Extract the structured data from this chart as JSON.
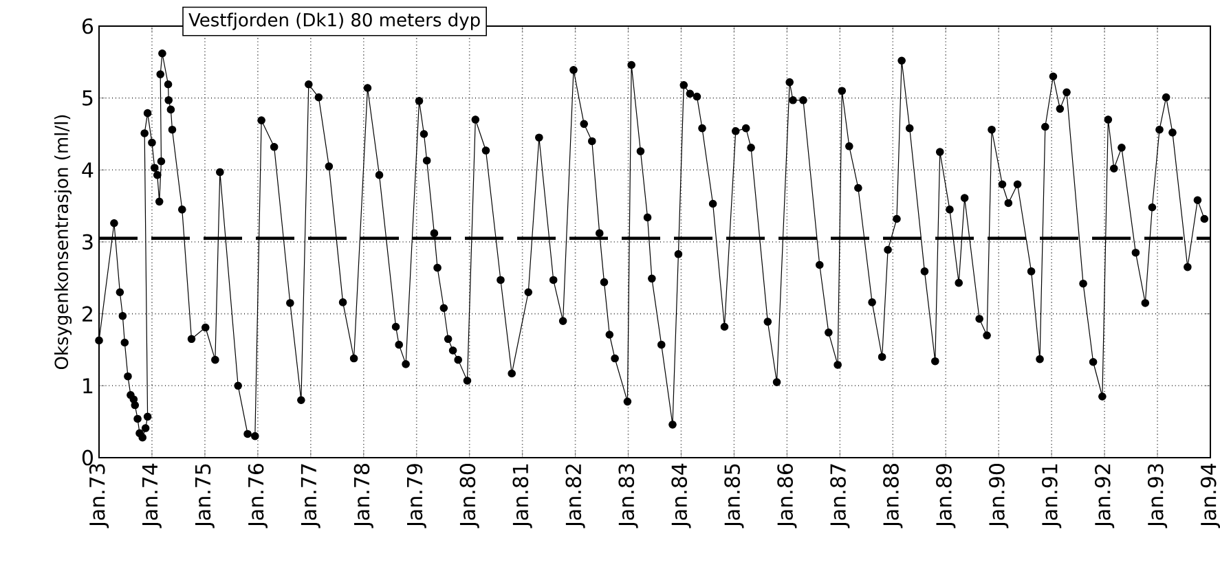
{
  "chart_data": {
    "type": "line",
    "title": "Vestfjorden (Dk1) 80 meters dyp",
    "ylabel": "Oksygenkonsentrasjon (ml/l)",
    "x": [
      "1973-01-01",
      "1973-04-15",
      "1973-05-25",
      "1973-06-13",
      "1973-06-27",
      "1973-07-19",
      "1973-08-07",
      "1973-08-28",
      "1973-09-06",
      "1973-09-24",
      "1973-10-08",
      "1973-10-28",
      "1973-11-18",
      "1973-12-02",
      "1973-11-11",
      "1973-12-02",
      "1974-01-01",
      "1974-01-19",
      "1974-02-07",
      "1974-02-21",
      "1974-03-06",
      "1974-02-28",
      "1974-03-13",
      "1974-04-23",
      "1974-04-26",
      "1974-05-11",
      "1974-05-21",
      "1974-07-28",
      "1974-10-01",
      "1975-01-05",
      "1975-03-13",
      "1975-04-15",
      "1975-08-18",
      "1975-10-23",
      "1975-12-13",
      "1976-01-26",
      "1976-04-23",
      "1976-08-11",
      "1976-10-26",
      "1976-12-17",
      "1977-02-25",
      "1977-05-07",
      "1977-08-11",
      "1977-10-26",
      "1978-01-28",
      "1978-04-19",
      "1978-08-11",
      "1978-09-02",
      "1978-10-19",
      "1979-01-19",
      "1979-02-21",
      "1979-03-13",
      "1979-05-03",
      "1979-05-25",
      "1979-07-08",
      "1979-08-07",
      "1979-09-09",
      "1979-10-15",
      "1979-12-17",
      "1980-02-11",
      "1980-04-23",
      "1980-08-03",
      "1980-10-19",
      "1981-02-11",
      "1981-04-26",
      "1981-08-03",
      "1981-10-08",
      "1981-12-20",
      "1982-03-02",
      "1982-04-26",
      "1982-06-17",
      "1982-07-19",
      "1982-08-25",
      "1982-10-01",
      "1982-12-27",
      "1983-01-23",
      "1983-03-27",
      "1983-05-14",
      "1983-06-13",
      "1983-08-18",
      "1983-11-03",
      "1983-12-13",
      "1984-01-19",
      "1984-03-02",
      "1984-04-19",
      "1984-05-25",
      "1984-08-07",
      "1984-10-26",
      "1985-01-12",
      "1985-03-24",
      "1985-04-28",
      "1985-08-21",
      "1985-10-23",
      "1986-01-19",
      "1986-02-11",
      "1986-04-23",
      "1986-08-14",
      "1986-10-15",
      "1986-12-17",
      "1987-01-15",
      "1987-03-06",
      "1987-05-07",
      "1987-08-11",
      "1987-10-19",
      "1987-11-28",
      "1988-01-28",
      "1988-03-02",
      "1988-04-26",
      "1988-08-07",
      "1988-10-19",
      "1988-11-21",
      "1989-01-28",
      "1989-04-01",
      "1989-05-11",
      "1989-08-21",
      "1989-10-12",
      "1989-11-14",
      "1990-01-26",
      "1990-03-09",
      "1990-05-11",
      "1990-08-14",
      "1990-10-12",
      "1990-11-18",
      "1991-01-12",
      "1991-02-28",
      "1991-04-15",
      "1991-08-07",
      "1991-10-15",
      "1991-12-17",
      "1992-01-26",
      "1992-03-06",
      "1992-04-28",
      "1992-08-03",
      "1992-10-08",
      "1992-11-25",
      "1993-01-15",
      "1993-03-02",
      "1993-04-15",
      "1993-07-28",
      "1993-10-05",
      "1993-11-21"
    ],
    "series": [
      {
        "color": "#000000",
        "values": [
          1.63,
          3.26,
          2.3,
          1.97,
          1.6,
          1.13,
          0.87,
          0.81,
          0.73,
          0.54,
          0.34,
          0.28,
          0.41,
          0.57,
          4.51,
          4.79,
          4.38,
          4.03,
          3.93,
          3.56,
          4.12,
          5.33,
          5.62,
          5.19,
          4.97,
          4.84,
          4.56,
          3.45,
          1.65,
          1.81,
          1.36,
          3.97,
          1.0,
          0.33,
          0.3,
          4.69,
          4.32,
          2.15,
          0.8,
          5.19,
          5.01,
          4.05,
          2.16,
          1.38,
          5.14,
          3.93,
          1.82,
          1.57,
          1.3,
          4.96,
          4.5,
          4.13,
          3.12,
          2.64,
          2.08,
          1.65,
          1.49,
          1.36,
          1.07,
          4.7,
          4.27,
          2.47,
          1.17,
          2.3,
          4.45,
          2.47,
          1.9,
          5.39,
          4.64,
          4.4,
          3.12,
          2.44,
          1.71,
          1.38,
          0.78,
          5.46,
          4.26,
          3.34,
          2.49,
          1.57,
          0.46,
          2.83,
          5.18,
          5.06,
          5.02,
          4.58,
          3.53,
          1.82,
          4.54,
          4.58,
          4.31,
          1.89,
          1.05,
          5.22,
          4.97,
          4.97,
          2.68,
          1.74,
          1.29,
          5.1,
          4.33,
          3.75,
          2.16,
          1.4,
          2.89,
          3.32,
          5.52,
          4.58,
          2.59,
          1.34,
          4.25,
          3.45,
          2.43,
          3.61,
          1.93,
          1.7,
          4.56,
          3.8,
          3.54,
          3.8,
          2.59,
          1.37,
          4.6,
          5.3,
          4.85,
          5.08,
          2.42,
          1.33,
          0.85,
          4.7,
          4.02,
          4.31,
          2.85,
          2.15,
          3.48,
          4.56,
          5.01,
          4.52,
          2.65,
          3.58,
          3.32
        ]
      }
    ],
    "xlim": [
      "1973-01",
      "1994-01"
    ],
    "ylim": [
      0,
      6
    ],
    "xticks": [
      {
        "value": "1973-01",
        "label": "Jan.73"
      },
      {
        "value": "1974-01",
        "label": "Jan.74"
      },
      {
        "value": "1975-01",
        "label": "Jan.75"
      },
      {
        "value": "1976-01",
        "label": "Jan.76"
      },
      {
        "value": "1977-01",
        "label": "Jan.77"
      },
      {
        "value": "1978-01",
        "label": "Jan.78"
      },
      {
        "value": "1979-01",
        "label": "Jan.79"
      },
      {
        "value": "1980-01",
        "label": "Jan.80"
      },
      {
        "value": "1981-01",
        "label": "Jan.81"
      },
      {
        "value": "1982-01",
        "label": "Jan.82"
      },
      {
        "value": "1983-01",
        "label": "Jan.83"
      },
      {
        "value": "1984-01",
        "label": "Jan.84"
      },
      {
        "value": "1985-01",
        "label": "Jan.85"
      },
      {
        "value": "1986-01",
        "label": "Jan.86"
      },
      {
        "value": "1987-01",
        "label": "Jan.87"
      },
      {
        "value": "1988-01",
        "label": "Jan.88"
      },
      {
        "value": "1989-01",
        "label": "Jan.89"
      },
      {
        "value": "1990-01",
        "label": "Jan.90"
      },
      {
        "value": "1991-01",
        "label": "Jan.91"
      },
      {
        "value": "1992-01",
        "label": "Jan.92"
      },
      {
        "value": "1993-01",
        "label": "Jan.93"
      },
      {
        "value": "1994-01",
        "label": "Jan.94"
      }
    ],
    "yticks": [
      0,
      1,
      2,
      3,
      4,
      5,
      6
    ],
    "ref_lines": [
      {
        "axis": "y",
        "value": 3.05,
        "line_style": "dashed",
        "color": "#000000"
      }
    ],
    "grid": true,
    "marker": "circle",
    "line_style": "solid"
  }
}
